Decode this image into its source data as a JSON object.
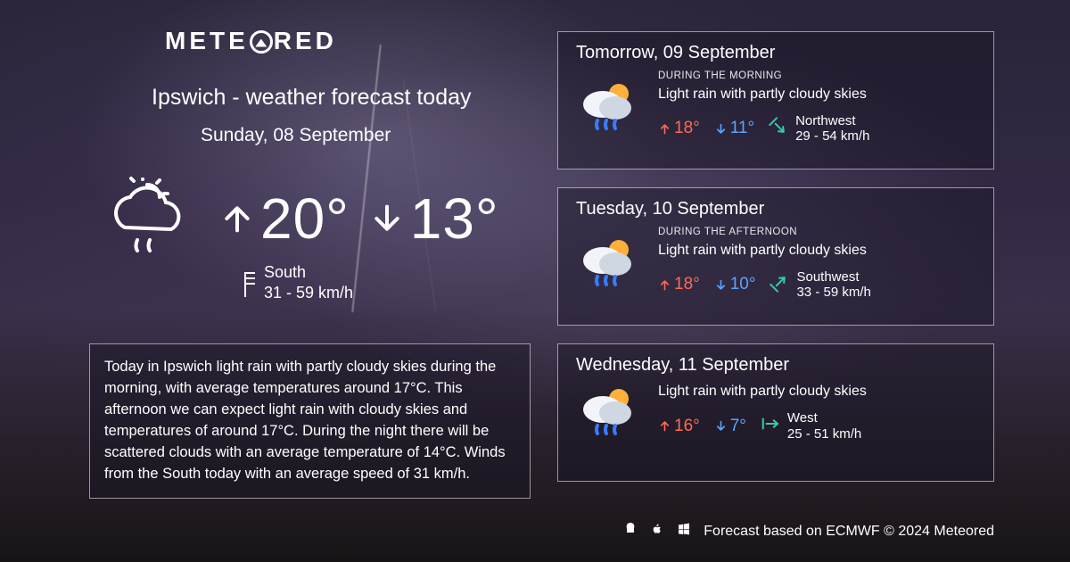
{
  "brand": "METEORED",
  "title": "Ipswich - weather forecast today",
  "subtitle": "Sunday, 08 September",
  "today": {
    "high": "20°",
    "low": "13°",
    "wind_dir": "South",
    "wind_range": "31 - 59 km/h"
  },
  "summary": "Today in Ipswich light rain with partly cloudy skies during the morning, with average temperatures around 17°C. This afternoon we can expect light rain with cloudy skies and temperatures of around 17°C. During the night there will be scattered clouds with an average temperature of 14°C. Winds from the South today with an average speed of 31 km/h.",
  "forecast": [
    {
      "date": "Tomorrow, 09 September",
      "period": "DURING THE MORNING",
      "desc": "Light rain with partly cloudy skies",
      "high": "18°",
      "low": "11°",
      "wind_dir": "Northwest",
      "wind_range": "29 - 54 km/h",
      "wind_arrow_rot": 135,
      "wind_color": "#35c9a7"
    },
    {
      "date": "Tuesday, 10 September",
      "period": "DURING THE AFTERNOON",
      "desc": "Light rain with partly cloudy skies",
      "high": "18°",
      "low": "10°",
      "wind_dir": "Southwest",
      "wind_range": "33 - 59 km/h",
      "wind_arrow_rot": 45,
      "wind_color": "#35c9a7"
    },
    {
      "date": "Wednesday, 11 September",
      "period": "",
      "desc": "Light rain with partly cloudy skies",
      "high": "16°",
      "low": "7°",
      "wind_dir": "West",
      "wind_range": "25 - 51 km/h",
      "wind_arrow_rot": 90,
      "wind_color": "#35c9a7"
    }
  ],
  "footer": "Forecast based on ECMWF © 2024 Meteored",
  "colors": {
    "high": "#ff6a55",
    "low": "#5aa4ff",
    "text": "#ffffff",
    "card_border": "rgba(255,255,255,0.55)",
    "card_bg": "rgba(25,20,35,0.45)"
  }
}
